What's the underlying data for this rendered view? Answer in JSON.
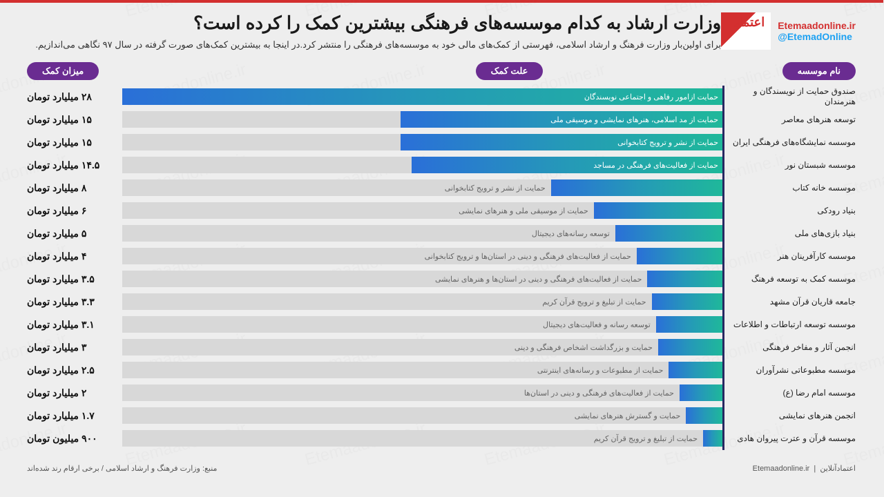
{
  "header": {
    "title": "وزارت ارشاد به کدام موسسه‌های فرهنگی بیشترین کمک را کرده است؟",
    "subtitle": "برای اولین‌بار وزارت فرهنگ و ارشاد اسلامی، فهرستی از کمک‌های مالی خود به موسسه‌های فرهنگی را منتشر کرد.در اینجا به بیشترین کمک‌های صورت گرفته در سال ۹۷ نگاهی می‌اندازیم.",
    "logo_url": "Etemaadonline.ir",
    "logo_handle": "@EtemadOnline"
  },
  "columns": {
    "name": "نام موسسه",
    "reason": "علت کمک",
    "amount": "میزان کمک"
  },
  "chart": {
    "type": "bar",
    "max_value": 28,
    "bar_gradient_from": "#1fb89a",
    "bar_gradient_to": "#2a6fd8",
    "track_color": "#d8d8d8",
    "axis_color": "#272761",
    "pill_bg": "#6a2c91",
    "pill_fg": "#ffffff",
    "bg": "#eeeeee",
    "title_fontsize": 26,
    "label_fontsize": 12,
    "amount_fontsize": 14
  },
  "rows": [
    {
      "name": "صندوق حمایت از نویسندگان و هنرمندان",
      "reason": "حمایت ازامور رفاهی و اجتماعی نویسندگان",
      "amount_text": "۲۸ میلیارد تومان",
      "value": 28
    },
    {
      "name": "توسعه هنرهای معاصر",
      "reason": "حمایت از مد اسلامی، هنرهای نمایشی و موسیقی ملی",
      "amount_text": "۱۵ میلیارد تومان",
      "value": 15
    },
    {
      "name": "موسسه نمایشگاه‌های فرهنگی ایران",
      "reason": "حمایت از نشر و ترویج کتابخوانی",
      "amount_text": "۱۵ میلیارد تومان",
      "value": 15
    },
    {
      "name": "موسسه شبستان نور",
      "reason": "حمایت از فعالیت‌های فرهنگی در مساجد",
      "amount_text": "۱۴.۵ میلیارد تومان",
      "value": 14.5
    },
    {
      "name": "موسسه خانه کتاب",
      "reason": "حمایت از نشر و ترویج کتابخوانی",
      "amount_text": "۸ میلیارد تومان",
      "value": 8
    },
    {
      "name": "بنیاد رودکی",
      "reason": "حمایت از موسیقی ملی و هنرهای نمایشی",
      "amount_text": "۶ میلیارد تومان",
      "value": 6
    },
    {
      "name": "بنیاد بازی‌های ملی",
      "reason": "توسعه رسانه‌های دیجیتال",
      "amount_text": "۵ میلیارد تومان",
      "value": 5
    },
    {
      "name": "موسسه کارآفرینان هنر",
      "reason": "حمایت از فعالیت‌های فرهنگی و دینی در استان‌ها و ترویج کتابخوانی",
      "amount_text": "۴ میلیارد تومان",
      "value": 4
    },
    {
      "name": "موسسه کمک به توسعه فرهنگ",
      "reason": "حمایت از فعالیت‌های فرهنگی و دینی در استان‌ها و هنرهای نمایشی",
      "amount_text": "۳.۵ میلیارد تومان",
      "value": 3.5
    },
    {
      "name": "جامعه قاریان قرآن مشهد",
      "reason": "حمایت از تبلیغ و ترویج قرآن کریم",
      "amount_text": "۳.۳ میلیارد تومان",
      "value": 3.3
    },
    {
      "name": "موسسه توسعه ارتباطات و اطلاعات",
      "reason": "توسعه رسانه و فعالیت‌های دیجیتال",
      "amount_text": "۳.۱ میلیارد تومان",
      "value": 3.1
    },
    {
      "name": "انجمن آثار و مفاخر فرهنگی",
      "reason": "حمایت و بزرگداشت اشخاص فرهنگی و دینی",
      "amount_text": "۳ میلیارد تومان",
      "value": 3
    },
    {
      "name": "موسسه مطبوعاتی نشرآوران",
      "reason": "حمایت از مطبوعات و رسانه‌های اینترنتی",
      "amount_text": "۲.۵ میلیارد تومان",
      "value": 2.5
    },
    {
      "name": "موسسه امام رضا (ع)",
      "reason": "حمایت از فعالیت‌های فرهنگی و دینی در استان‌ها",
      "amount_text": "۲ میلیارد تومان",
      "value": 2
    },
    {
      "name": "انجمن هنرهای نمایشی",
      "reason": "حمایت و گسترش هنرهای نمایشی",
      "amount_text": "۱.۷ میلیارد تومان",
      "value": 1.7
    },
    {
      "name": "موسسه قرآن و عترت پیروان هادی",
      "reason": "حمایت از تبلیغ و ترویج قرآن کریم",
      "amount_text": "۹۰۰ میلیون تومان",
      "value": 0.9
    }
  ],
  "footer": {
    "source": "منبع: وزارت فرهنگ و ارشاد اسلامی / برخی ارقام رند شده‌اند",
    "brand_en": "Etemaadonline.ir",
    "brand_fa": "اعتمادآنلاین"
  },
  "watermark_text": "Etemaadonline.ir"
}
